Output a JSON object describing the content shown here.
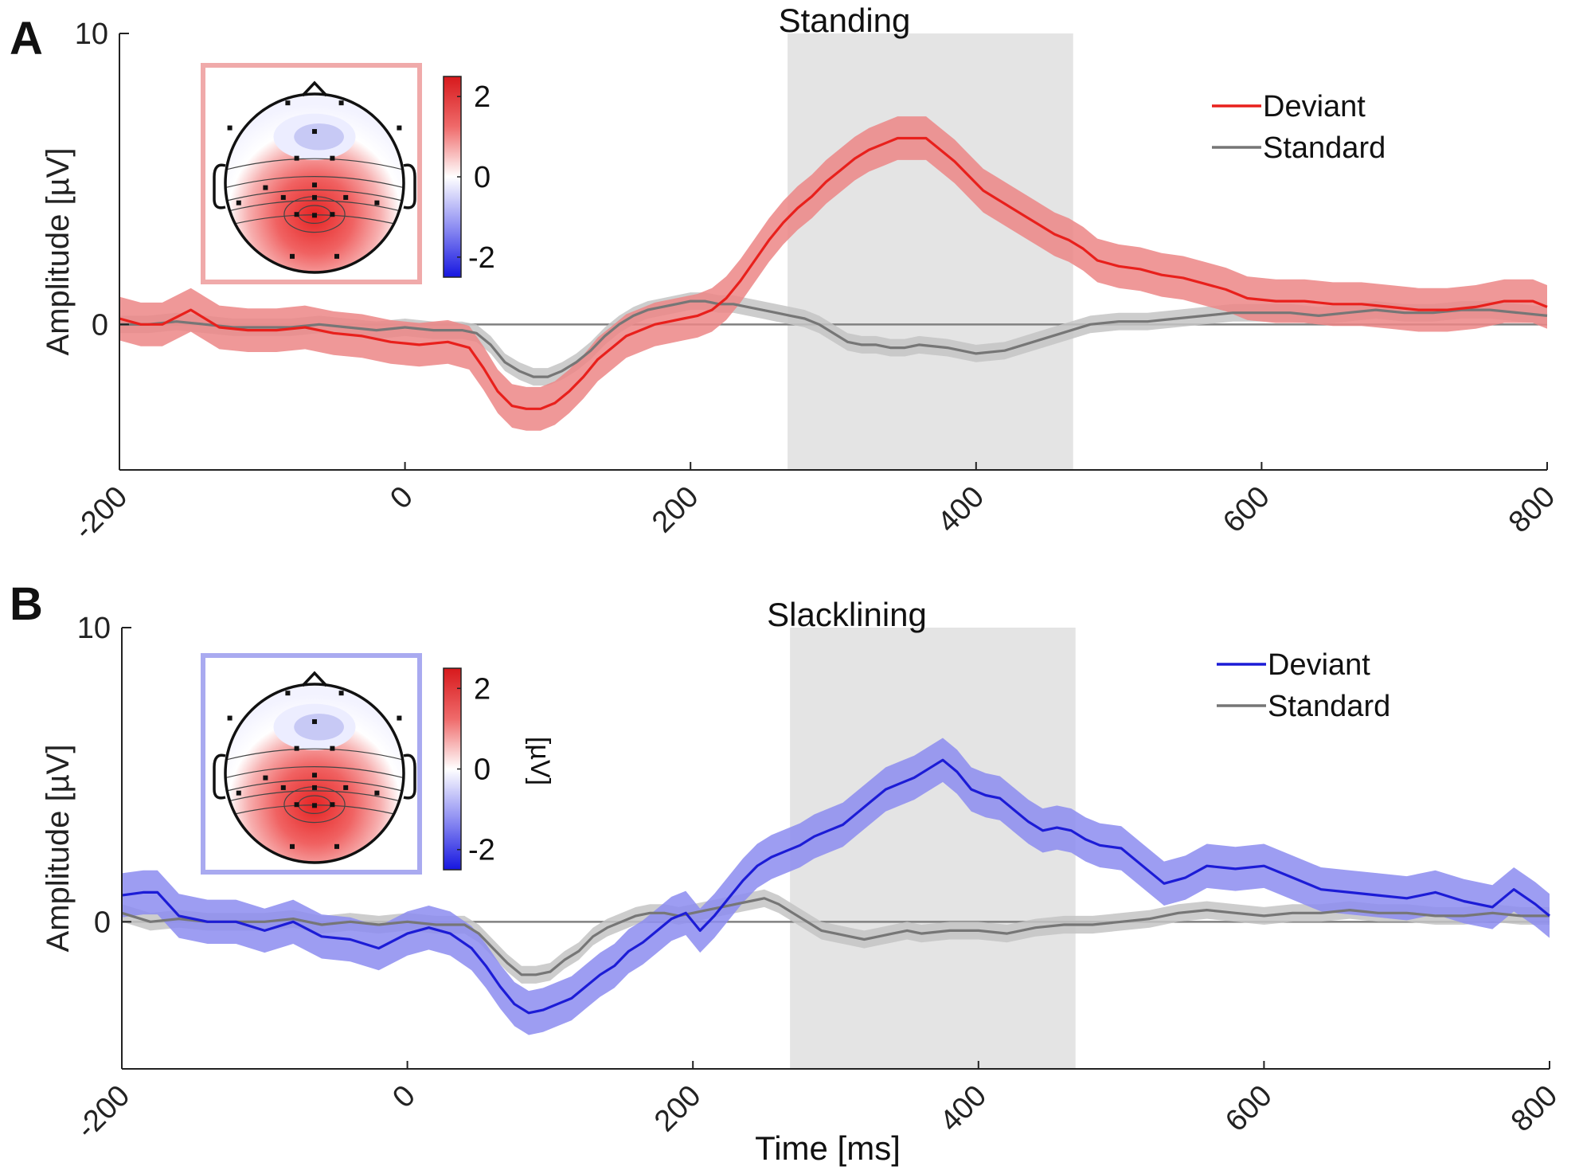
{
  "figure": {
    "xlabel": "Time [ms]",
    "colorbar_unit": "[µV]"
  },
  "chart_data": [
    {
      "type": "line",
      "panel_label": "A",
      "title": "Standing",
      "xlabel": "",
      "ylabel": "Amplitude [µV]",
      "xlim": [
        -200,
        800
      ],
      "ylim": [
        -5,
        10
      ],
      "x_ticks": [
        "-200",
        "0",
        "200",
        "400",
        "600",
        "800"
      ],
      "y_ticks": [
        "0",
        "10"
      ],
      "shaded_window": [
        268,
        468
      ],
      "legend": {
        "placement": "top-right",
        "entries": [
          "Deviant",
          "Standard"
        ]
      },
      "colorbar": {
        "ticks": [
          "2",
          "0",
          "-2"
        ],
        "range": [
          -2.5,
          2.5
        ]
      },
      "series": [
        {
          "name": "Deviant",
          "color": "#e8201c",
          "band_color": "#ec8686",
          "band_halfwidth": 0.75,
          "x": [
            -200,
            -185,
            -170,
            -150,
            -130,
            -110,
            -90,
            -70,
            -50,
            -30,
            -10,
            10,
            30,
            45,
            55,
            65,
            75,
            85,
            95,
            105,
            115,
            125,
            135,
            145,
            155,
            165,
            175,
            185,
            195,
            205,
            215,
            225,
            235,
            245,
            255,
            265,
            275,
            285,
            295,
            305,
            315,
            325,
            335,
            345,
            355,
            365,
            375,
            385,
            395,
            405,
            415,
            425,
            435,
            445,
            455,
            465,
            475,
            485,
            500,
            515,
            530,
            545,
            560,
            575,
            590,
            610,
            630,
            650,
            670,
            690,
            710,
            730,
            750,
            770,
            790,
            800
          ],
          "values": [
            0.2,
            0.0,
            0.0,
            0.5,
            -0.1,
            -0.2,
            -0.2,
            -0.1,
            -0.3,
            -0.4,
            -0.6,
            -0.7,
            -0.6,
            -0.8,
            -1.5,
            -2.3,
            -2.8,
            -2.9,
            -2.9,
            -2.7,
            -2.3,
            -1.8,
            -1.2,
            -0.8,
            -0.4,
            -0.2,
            0.0,
            0.1,
            0.2,
            0.3,
            0.5,
            0.9,
            1.5,
            2.2,
            2.9,
            3.5,
            4.0,
            4.4,
            4.9,
            5.3,
            5.7,
            6.0,
            6.2,
            6.4,
            6.4,
            6.4,
            6.0,
            5.6,
            5.1,
            4.6,
            4.3,
            4.0,
            3.7,
            3.4,
            3.1,
            2.9,
            2.6,
            2.2,
            2.0,
            1.9,
            1.7,
            1.6,
            1.4,
            1.2,
            0.9,
            0.8,
            0.8,
            0.7,
            0.7,
            0.6,
            0.5,
            0.5,
            0.6,
            0.8,
            0.8,
            0.6
          ]
        },
        {
          "name": "Standard",
          "color": "#767676",
          "band_color": "#c4c4c4",
          "band_halfwidth": 0.3,
          "x": [
            -200,
            -180,
            -160,
            -140,
            -120,
            -100,
            -80,
            -60,
            -40,
            -20,
            0,
            20,
            40,
            50,
            60,
            70,
            80,
            90,
            100,
            110,
            120,
            130,
            140,
            150,
            160,
            170,
            180,
            190,
            200,
            210,
            220,
            230,
            240,
            250,
            260,
            270,
            280,
            290,
            300,
            310,
            320,
            330,
            340,
            350,
            360,
            380,
            400,
            420,
            440,
            460,
            480,
            500,
            520,
            540,
            560,
            580,
            600,
            620,
            640,
            660,
            680,
            700,
            720,
            740,
            760,
            780,
            800
          ],
          "values": [
            0.0,
            0.0,
            0.1,
            0.0,
            -0.1,
            -0.1,
            -0.1,
            0.0,
            -0.1,
            -0.2,
            -0.1,
            -0.2,
            -0.2,
            -0.3,
            -0.7,
            -1.3,
            -1.6,
            -1.8,
            -1.8,
            -1.6,
            -1.3,
            -0.9,
            -0.4,
            0.0,
            0.3,
            0.5,
            0.6,
            0.7,
            0.8,
            0.8,
            0.7,
            0.7,
            0.6,
            0.5,
            0.4,
            0.3,
            0.2,
            0.0,
            -0.3,
            -0.6,
            -0.7,
            -0.7,
            -0.8,
            -0.8,
            -0.7,
            -0.8,
            -1.0,
            -0.9,
            -0.6,
            -0.3,
            0.0,
            0.1,
            0.1,
            0.2,
            0.3,
            0.4,
            0.4,
            0.4,
            0.3,
            0.4,
            0.5,
            0.4,
            0.4,
            0.5,
            0.5,
            0.4,
            0.3
          ]
        }
      ]
    },
    {
      "type": "line",
      "panel_label": "B",
      "title": "Slacklining",
      "xlabel": "Time [ms]",
      "ylabel": "Amplitude [µV]",
      "xlim": [
        -200,
        800
      ],
      "ylim": [
        -5,
        10
      ],
      "x_ticks": [
        "-200",
        "0",
        "200",
        "400",
        "600",
        "800"
      ],
      "y_ticks": [
        "0",
        "10"
      ],
      "shaded_window": [
        268,
        468
      ],
      "legend": {
        "placement": "top-right",
        "entries": [
          "Deviant",
          "Standard"
        ]
      },
      "colorbar": {
        "ticks": [
          "2",
          "0",
          "-2"
        ],
        "range": [
          -2.5,
          2.5
        ]
      },
      "series": [
        {
          "name": "Deviant",
          "color": "#1c1cd6",
          "band_color": "#8c8cf0",
          "band_halfwidth": 0.75,
          "x": [
            -200,
            -185,
            -175,
            -160,
            -140,
            -120,
            -100,
            -80,
            -60,
            -40,
            -20,
            0,
            15,
            30,
            45,
            55,
            65,
            75,
            85,
            95,
            105,
            115,
            125,
            135,
            145,
            155,
            165,
            175,
            185,
            195,
            205,
            215,
            225,
            235,
            245,
            255,
            265,
            275,
            285,
            295,
            305,
            315,
            325,
            335,
            345,
            355,
            365,
            375,
            385,
            395,
            405,
            415,
            425,
            435,
            445,
            455,
            465,
            475,
            485,
            500,
            515,
            530,
            545,
            560,
            580,
            600,
            620,
            640,
            660,
            680,
            700,
            720,
            740,
            760,
            775,
            790,
            800
          ],
          "values": [
            0.9,
            1.0,
            1.0,
            0.2,
            0.0,
            0.0,
            -0.3,
            0.0,
            -0.5,
            -0.6,
            -0.9,
            -0.4,
            -0.2,
            -0.4,
            -0.9,
            -1.5,
            -2.2,
            -2.8,
            -3.1,
            -3.0,
            -2.8,
            -2.6,
            -2.2,
            -1.8,
            -1.5,
            -1.0,
            -0.7,
            -0.3,
            0.1,
            0.3,
            -0.3,
            0.2,
            0.8,
            1.4,
            1.9,
            2.2,
            2.4,
            2.6,
            2.9,
            3.1,
            3.3,
            3.7,
            4.1,
            4.5,
            4.7,
            4.9,
            5.2,
            5.5,
            5.1,
            4.5,
            4.3,
            4.2,
            3.8,
            3.4,
            3.1,
            3.2,
            3.1,
            2.8,
            2.6,
            2.5,
            1.9,
            1.3,
            1.5,
            1.9,
            1.8,
            1.9,
            1.5,
            1.1,
            1.0,
            0.9,
            0.8,
            1.0,
            0.7,
            0.5,
            1.1,
            0.6,
            0.2
          ]
        },
        {
          "name": "Standard",
          "color": "#767676",
          "band_color": "#c4c4c4",
          "band_halfwidth": 0.3,
          "x": [
            -200,
            -180,
            -160,
            -140,
            -120,
            -100,
            -80,
            -60,
            -40,
            -20,
            0,
            20,
            40,
            50,
            60,
            70,
            80,
            90,
            100,
            110,
            120,
            130,
            140,
            150,
            160,
            170,
            180,
            190,
            200,
            210,
            220,
            230,
            240,
            250,
            260,
            270,
            280,
            290,
            300,
            310,
            320,
            330,
            340,
            350,
            360,
            380,
            400,
            420,
            440,
            460,
            480,
            500,
            520,
            540,
            560,
            580,
            600,
            620,
            640,
            660,
            680,
            700,
            720,
            740,
            760,
            780,
            800
          ],
          "values": [
            0.3,
            0.0,
            0.1,
            0.0,
            0.0,
            0.0,
            0.1,
            -0.1,
            0.0,
            -0.1,
            0.0,
            -0.1,
            -0.1,
            -0.4,
            -0.9,
            -1.4,
            -1.8,
            -1.8,
            -1.7,
            -1.3,
            -1.0,
            -0.5,
            -0.2,
            0.0,
            0.2,
            0.3,
            0.3,
            0.2,
            0.3,
            0.4,
            0.5,
            0.6,
            0.7,
            0.8,
            0.6,
            0.3,
            0.0,
            -0.3,
            -0.4,
            -0.5,
            -0.6,
            -0.5,
            -0.4,
            -0.3,
            -0.4,
            -0.3,
            -0.3,
            -0.4,
            -0.2,
            -0.1,
            -0.1,
            0.0,
            0.1,
            0.3,
            0.4,
            0.3,
            0.2,
            0.3,
            0.3,
            0.4,
            0.3,
            0.3,
            0.2,
            0.2,
            0.3,
            0.2,
            0.2
          ]
        }
      ]
    }
  ]
}
